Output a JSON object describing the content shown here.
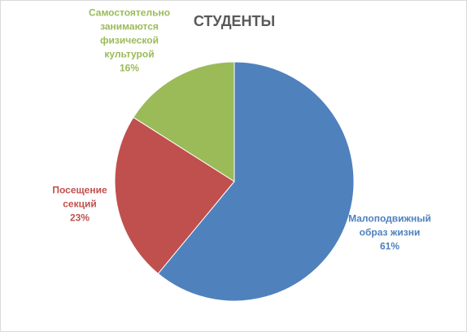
{
  "chart_data": {
    "type": "pie",
    "title": "СТУДЕНТЫ",
    "categories": [
      "Малоподвижный образ жизни",
      "Посещение секций",
      "Самостоятельно занимаются физической культурой"
    ],
    "values": [
      61,
      23,
      16
    ],
    "value_labels": [
      "61%",
      "23%",
      "16%"
    ],
    "colors": [
      "#4f81bd",
      "#c0504d",
      "#9bbb59"
    ]
  }
}
